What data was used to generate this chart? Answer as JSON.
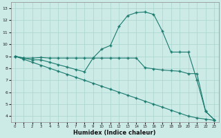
{
  "line1_x": [
    0,
    1,
    2,
    3,
    4,
    5,
    6,
    7,
    8,
    9,
    10,
    11,
    12,
    13,
    14,
    15,
    16,
    17,
    18,
    19,
    20,
    21,
    22,
    23
  ],
  "line1_y": [
    9.0,
    8.85,
    8.85,
    8.9,
    8.85,
    8.85,
    8.85,
    8.85,
    8.85,
    8.85,
    9.6,
    9.9,
    11.5,
    12.4,
    12.65,
    12.7,
    12.5,
    11.1,
    9.35,
    9.35,
    9.35,
    7.0,
    4.4,
    3.7
  ],
  "line2_x": [
    0,
    1,
    2,
    3,
    4,
    5,
    6,
    7,
    8,
    9,
    10,
    11,
    12,
    13,
    14,
    15,
    16,
    17,
    18,
    19,
    20,
    21,
    22,
    23
  ],
  "line2_y": [
    9.0,
    8.85,
    8.7,
    8.7,
    8.5,
    8.3,
    8.1,
    7.9,
    7.7,
    8.85,
    8.85,
    8.85,
    8.85,
    8.85,
    8.85,
    8.05,
    7.95,
    7.85,
    7.8,
    7.75,
    7.55,
    7.55,
    4.4,
    3.7
  ],
  "line3_x": [
    0,
    1,
    2,
    3,
    4,
    5,
    6,
    7,
    8,
    9,
    10,
    11,
    12,
    13,
    14,
    15,
    16,
    17,
    18,
    19,
    20,
    21,
    22,
    23
  ],
  "line3_y": [
    9.0,
    8.75,
    8.5,
    8.25,
    8.0,
    7.75,
    7.5,
    7.25,
    7.0,
    6.75,
    6.5,
    6.25,
    6.0,
    5.75,
    5.5,
    5.25,
    5.0,
    4.75,
    4.5,
    4.25,
    4.0,
    3.85,
    3.75,
    3.65
  ],
  "line_color": "#1a7a6e",
  "bg_color": "#cceae6",
  "grid_color": "#aad4d0",
  "xlabel": "Humidex (Indice chaleur)",
  "xlim": [
    -0.5,
    23.5
  ],
  "ylim": [
    3.5,
    13.5
  ],
  "yticks": [
    4,
    5,
    6,
    7,
    8,
    9,
    10,
    11,
    12,
    13
  ],
  "xticks": [
    0,
    1,
    2,
    3,
    4,
    5,
    6,
    7,
    8,
    9,
    10,
    11,
    12,
    13,
    14,
    15,
    16,
    17,
    18,
    19,
    20,
    21,
    22,
    23
  ]
}
